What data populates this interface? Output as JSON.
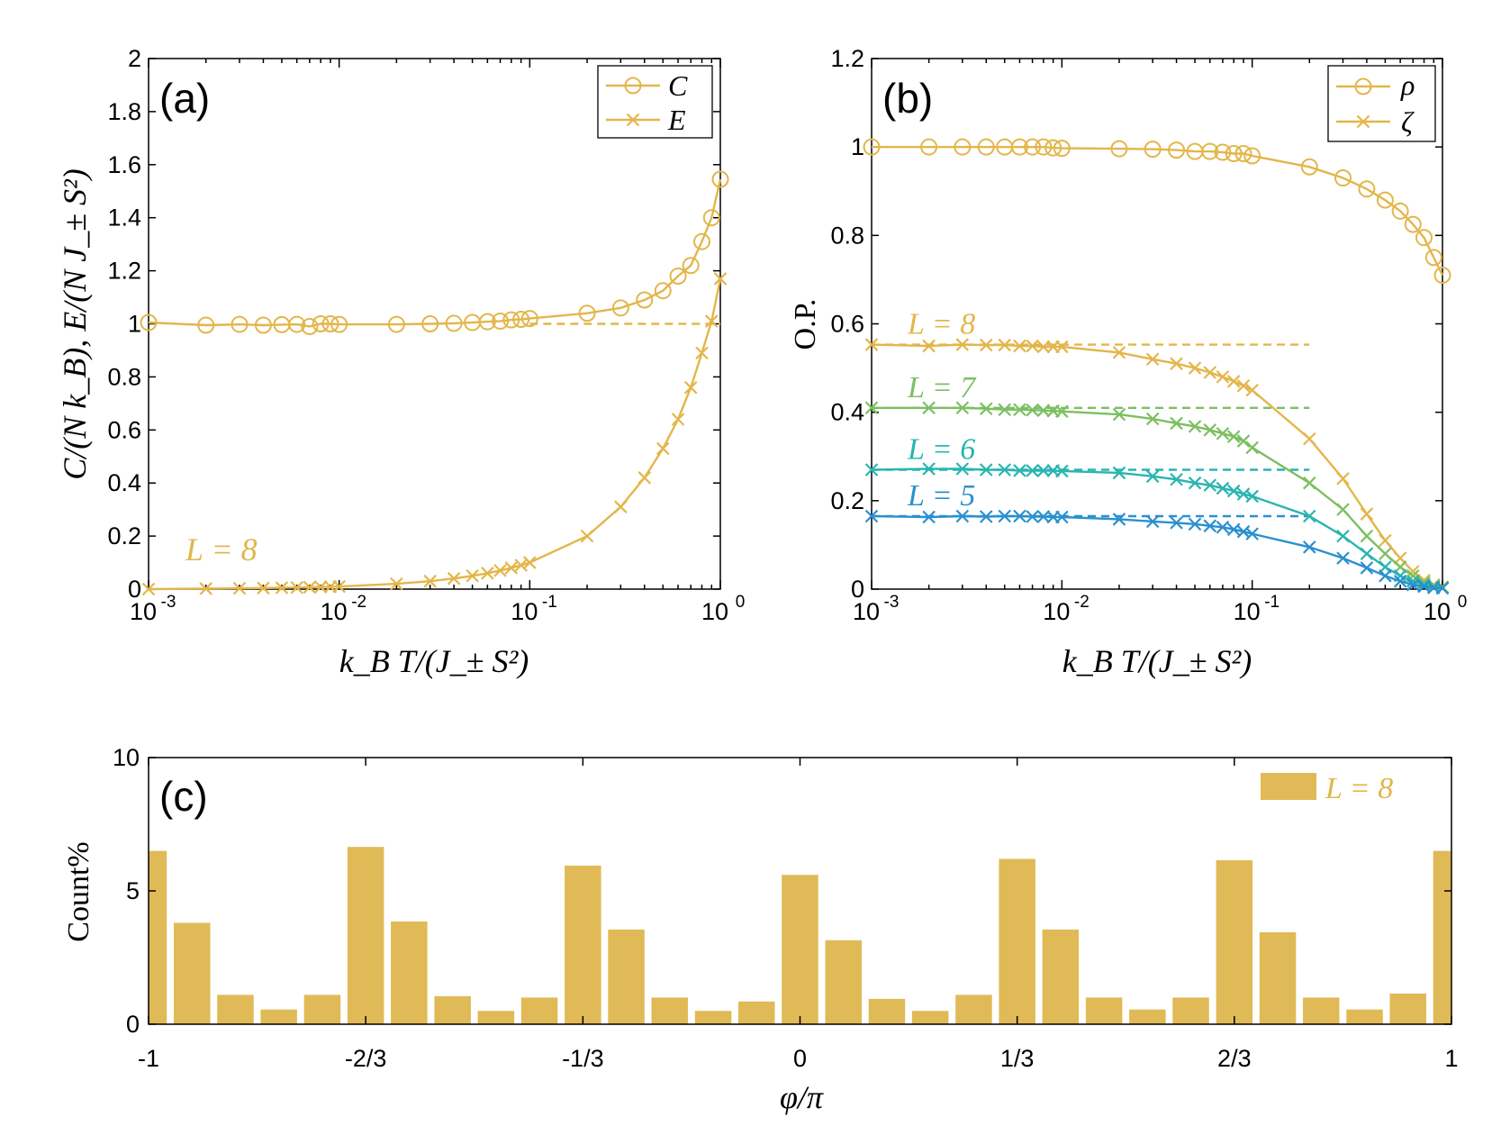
{
  "colors": {
    "gold": "#E3B64A",
    "green": "#7CBF61",
    "teal": "#29B5B0",
    "blue": "#2A90CF",
    "bar": "#E0BA56"
  },
  "chart_data": [
    {
      "panel": "(a)",
      "type": "line",
      "xscale": "log",
      "xlim": [
        0.001,
        1
      ],
      "ylim": [
        0,
        2
      ],
      "xticks": [
        "10",
        "10",
        "10",
        "10"
      ],
      "xtick_exponents": [
        "-3",
        "-2",
        "-1",
        "0"
      ],
      "yticks": [
        "0",
        "0.2",
        "0.4",
        "0.6",
        "0.8",
        "1",
        "1.2",
        "1.4",
        "1.6",
        "1.8",
        "2"
      ],
      "xlabel": "k_B T/(J_± S²)",
      "ylabel": "C/(N k_B), E/(N J_± S²)",
      "legend": [
        "C",
        "E"
      ],
      "annotation": "L = 8",
      "series": [
        {
          "name": "C",
          "marker": "circle",
          "x": [
            0.001,
            0.002,
            0.003,
            0.004,
            0.005,
            0.006,
            0.007,
            0.008,
            0.009,
            0.01,
            0.02,
            0.03,
            0.04,
            0.05,
            0.06,
            0.07,
            0.08,
            0.09,
            0.1,
            0.2,
            0.3,
            0.4,
            0.5,
            0.6,
            0.7,
            0.8,
            0.9,
            1.0
          ],
          "y": [
            1.005,
            0.995,
            0.998,
            0.995,
            0.997,
            0.998,
            0.99,
            1.0,
            1.0,
            0.998,
            0.998,
            1.0,
            1.002,
            1.005,
            1.008,
            1.01,
            1.015,
            1.017,
            1.02,
            1.04,
            1.06,
            1.09,
            1.125,
            1.18,
            1.22,
            1.31,
            1.4,
            1.545
          ]
        },
        {
          "name": "E",
          "marker": "x",
          "x": [
            0.001,
            0.002,
            0.003,
            0.004,
            0.005,
            0.006,
            0.007,
            0.008,
            0.009,
            0.01,
            0.02,
            0.03,
            0.04,
            0.05,
            0.06,
            0.07,
            0.08,
            0.09,
            0.1,
            0.2,
            0.3,
            0.4,
            0.5,
            0.6,
            0.7,
            0.8,
            0.9,
            1.0
          ],
          "y": [
            0.0,
            0.002,
            0.003,
            0.004,
            0.005,
            0.006,
            0.007,
            0.008,
            0.009,
            0.01,
            0.02,
            0.03,
            0.04,
            0.05,
            0.06,
            0.07,
            0.08,
            0.09,
            0.1,
            0.2,
            0.31,
            0.42,
            0.53,
            0.64,
            0.76,
            0.89,
            1.01,
            1.17
          ]
        }
      ],
      "dashed_reference": {
        "y": 1.0,
        "x_from": 0.1,
        "x_to": 1.0
      }
    },
    {
      "panel": "(b)",
      "type": "line",
      "xscale": "log",
      "xlim": [
        0.001,
        1
      ],
      "ylim": [
        0,
        1.2
      ],
      "xticks": [
        "10",
        "10",
        "10",
        "10"
      ],
      "xtick_exponents": [
        "-3",
        "-2",
        "-1",
        "0"
      ],
      "yticks": [
        "0",
        "0.2",
        "0.4",
        "0.6",
        "0.8",
        "1",
        "1.2"
      ],
      "xlabel": "k_B T/(J_± S²)",
      "ylabel": "O.P.",
      "legend": [
        "ρ",
        "ζ"
      ],
      "series": [
        {
          "name": "ρ",
          "marker": "circle",
          "x": [
            0.001,
            0.002,
            0.003,
            0.004,
            0.005,
            0.006,
            0.007,
            0.008,
            0.009,
            0.01,
            0.02,
            0.03,
            0.04,
            0.05,
            0.06,
            0.07,
            0.08,
            0.09,
            0.1,
            0.2,
            0.3,
            0.4,
            0.5,
            0.6,
            0.7,
            0.8,
            0.9,
            1.0
          ],
          "y": [
            1.0,
            1.0,
            1.0,
            1.0,
            1.0,
            1.0,
            1.0,
            1.0,
            0.998,
            0.997,
            0.996,
            0.995,
            0.993,
            0.99,
            0.99,
            0.988,
            0.985,
            0.985,
            0.98,
            0.955,
            0.93,
            0.905,
            0.88,
            0.855,
            0.825,
            0.795,
            0.75,
            0.71
          ]
        },
        {
          "name": "ζ L=8",
          "label": "L = 8",
          "marker": "x",
          "x": [
            0.001,
            0.002,
            0.003,
            0.004,
            0.005,
            0.006,
            0.007,
            0.008,
            0.009,
            0.01,
            0.02,
            0.03,
            0.04,
            0.05,
            0.06,
            0.07,
            0.08,
            0.09,
            0.1,
            0.2,
            0.3,
            0.4,
            0.5,
            0.6,
            0.7,
            0.8,
            0.9,
            1.0
          ],
          "y": [
            0.553,
            0.55,
            0.553,
            0.552,
            0.552,
            0.55,
            0.55,
            0.548,
            0.548,
            0.548,
            0.535,
            0.52,
            0.51,
            0.5,
            0.49,
            0.48,
            0.47,
            0.46,
            0.45,
            0.34,
            0.25,
            0.17,
            0.11,
            0.07,
            0.04,
            0.02,
            0.01,
            0.005
          ]
        },
        {
          "name": "ζ L=7",
          "label": "L = 7",
          "marker": "x",
          "x": [
            0.001,
            0.002,
            0.003,
            0.004,
            0.005,
            0.006,
            0.007,
            0.008,
            0.009,
            0.01,
            0.02,
            0.03,
            0.04,
            0.05,
            0.06,
            0.07,
            0.08,
            0.09,
            0.1,
            0.2,
            0.3,
            0.4,
            0.5,
            0.6,
            0.7,
            0.8,
            0.9,
            1.0
          ],
          "y": [
            0.41,
            0.41,
            0.41,
            0.408,
            0.406,
            0.406,
            0.405,
            0.404,
            0.403,
            0.402,
            0.395,
            0.385,
            0.375,
            0.368,
            0.36,
            0.352,
            0.345,
            0.335,
            0.32,
            0.24,
            0.18,
            0.12,
            0.08,
            0.05,
            0.03,
            0.015,
            0.008,
            0.004
          ]
        },
        {
          "name": "ζ L=6",
          "label": "L = 6",
          "marker": "x",
          "x": [
            0.001,
            0.002,
            0.003,
            0.004,
            0.005,
            0.006,
            0.007,
            0.008,
            0.009,
            0.01,
            0.02,
            0.03,
            0.04,
            0.05,
            0.06,
            0.07,
            0.08,
            0.09,
            0.1,
            0.2,
            0.3,
            0.4,
            0.5,
            0.6,
            0.7,
            0.8,
            0.9,
            1.0
          ],
          "y": [
            0.27,
            0.272,
            0.272,
            0.27,
            0.27,
            0.268,
            0.268,
            0.268,
            0.268,
            0.267,
            0.263,
            0.255,
            0.248,
            0.24,
            0.235,
            0.228,
            0.222,
            0.215,
            0.21,
            0.165,
            0.12,
            0.08,
            0.05,
            0.03,
            0.018,
            0.01,
            0.005,
            0.003
          ]
        },
        {
          "name": "ζ L=5",
          "label": "L = 5",
          "marker": "x",
          "x": [
            0.001,
            0.002,
            0.003,
            0.004,
            0.005,
            0.006,
            0.007,
            0.008,
            0.009,
            0.01,
            0.02,
            0.03,
            0.04,
            0.05,
            0.06,
            0.07,
            0.08,
            0.09,
            0.1,
            0.2,
            0.3,
            0.4,
            0.5,
            0.6,
            0.7,
            0.8,
            0.9,
            1.0
          ],
          "y": [
            0.165,
            0.163,
            0.165,
            0.164,
            0.165,
            0.165,
            0.164,
            0.164,
            0.163,
            0.163,
            0.158,
            0.153,
            0.15,
            0.147,
            0.143,
            0.14,
            0.135,
            0.13,
            0.125,
            0.095,
            0.07,
            0.048,
            0.03,
            0.018,
            0.01,
            0.006,
            0.003,
            0.002
          ]
        }
      ],
      "dashed_references": [
        {
          "series": "ζ L=8",
          "y": 0.553
        },
        {
          "series": "ζ L=7",
          "y": 0.41
        },
        {
          "series": "ζ L=6",
          "y": 0.27
        },
        {
          "series": "ζ L=5",
          "y": 0.165
        }
      ]
    },
    {
      "panel": "(c)",
      "type": "bar",
      "xlim": [
        -1,
        1
      ],
      "ylim": [
        0,
        10
      ],
      "xticks": [
        "-1",
        "-2/3",
        "-1/3",
        "0",
        "1/3",
        "2/3",
        "1"
      ],
      "yticks": [
        "0",
        "5",
        "10"
      ],
      "xlabel": "φ/π",
      "ylabel": "Count%",
      "legend": [
        "L = 8"
      ],
      "bin_width": 0.0667,
      "bin_centers": [
        -1.0,
        -0.9333,
        -0.8667,
        -0.8,
        -0.7333,
        -0.6667,
        -0.6,
        -0.5333,
        -0.4667,
        -0.4,
        -0.3333,
        -0.2667,
        -0.2,
        -0.1333,
        -0.0667,
        0.0,
        0.0667,
        0.1333,
        0.2,
        0.2667,
        0.3333,
        0.4,
        0.4667,
        0.5333,
        0.6,
        0.6667,
        0.7333,
        0.8,
        0.8667,
        0.9333,
        1.0
      ],
      "values": [
        6.5,
        3.8,
        1.1,
        0.55,
        1.1,
        6.65,
        3.85,
        1.05,
        0.5,
        1.0,
        5.95,
        3.55,
        1.0,
        0.5,
        0.85,
        5.6,
        3.15,
        0.95,
        0.5,
        1.1,
        6.2,
        3.55,
        1.0,
        0.55,
        1.0,
        6.15,
        3.45,
        1.0,
        0.55,
        1.15,
        6.5
      ]
    }
  ]
}
